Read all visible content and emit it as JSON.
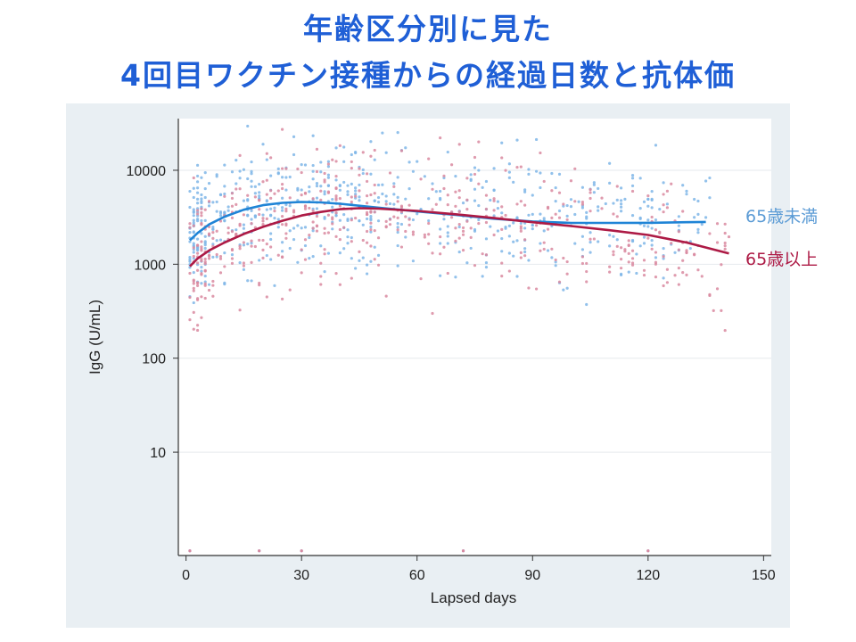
{
  "page": {
    "title_line1": "年齢区分別に見た",
    "title_line2": "4回目ワクチン接種からの経過日数と抗体価"
  },
  "colors": {
    "title": "#1f5fd6",
    "under65": "#1f84d6",
    "under65_points": "#7fb6e8",
    "over65": "#ad1a45",
    "over65_points": "#d98aa0",
    "panel_bg": "#e9eff3",
    "plot_bg": "#ffffff"
  },
  "chart_data": {
    "type": "scatter",
    "title": "",
    "xlabel": "Lapsed days",
    "ylabel": "IgG (U/mL)",
    "xlim": [
      -2,
      152
    ],
    "ylim_log10": [
      -0.1,
      4.55
    ],
    "log_scale_y": true,
    "grid": true,
    "x_ticks": [
      0,
      30,
      60,
      90,
      120,
      150
    ],
    "x_tick_labels": [
      "0",
      "30",
      "60",
      "90",
      "120",
      "150"
    ],
    "y_ticks": [
      10,
      100,
      1000,
      10000
    ],
    "y_tick_labels": [
      "10",
      "100",
      "1000",
      "10000"
    ],
    "series": [
      {
        "name": "65歳未満",
        "color": "#1f84d6",
        "point_color": "#7fb6e8",
        "fit_x": [
          1,
          3,
          6,
          10,
          15,
          20,
          25,
          30,
          35,
          40,
          50,
          60,
          70,
          80,
          90,
          100,
          110,
          120,
          130,
          135
        ],
        "fit_y": [
          1800,
          2150,
          2650,
          3200,
          3800,
          4250,
          4500,
          4600,
          4550,
          4400,
          4000,
          3650,
          3350,
          3050,
          2850,
          2750,
          2750,
          2760,
          2800,
          2820
        ]
      },
      {
        "name": "65歳以上",
        "color": "#ad1a45",
        "point_color": "#d98aa0",
        "fit_x": [
          1,
          3,
          6,
          10,
          15,
          20,
          25,
          30,
          35,
          40,
          45,
          50,
          60,
          70,
          80,
          90,
          100,
          110,
          120,
          130,
          141
        ],
        "fit_y": [
          950,
          1150,
          1400,
          1700,
          2100,
          2500,
          2900,
          3300,
          3600,
          3850,
          3950,
          3900,
          3700,
          3400,
          3100,
          2800,
          2550,
          2300,
          2050,
          1700,
          1300
        ]
      }
    ]
  }
}
